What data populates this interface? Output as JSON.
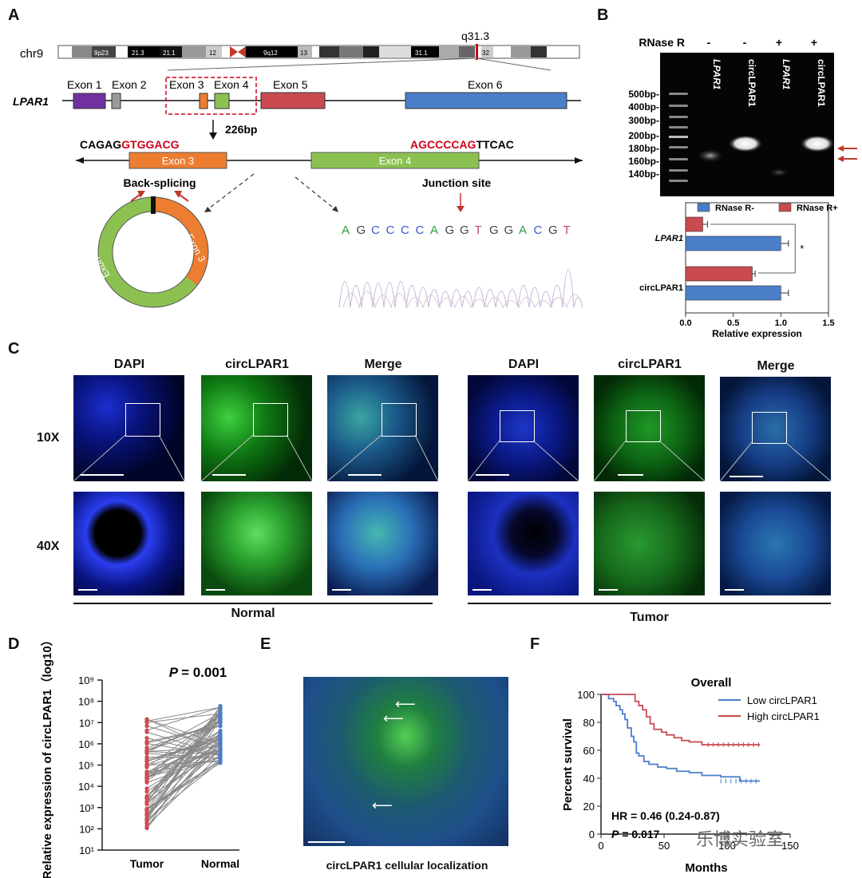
{
  "panels": {
    "a": "A",
    "b": "B",
    "c": "C",
    "d": "D",
    "e": "E",
    "f": "F"
  },
  "panel_a": {
    "chromosome": "chr9",
    "band_marker": "q31.3",
    "bands": [
      "9p23",
      "21.3",
      "21.1",
      "12",
      "9q12",
      "13",
      "31.1",
      "32"
    ],
    "gene": "LPAR1",
    "exons": [
      "Exon 1",
      "Exon 2",
      "Exon 3",
      "Exon 4",
      "Exon 5",
      "Exon 6"
    ],
    "size_label": "226bp",
    "seq_left_black": "CAGAG",
    "seq_left_red": "GTGGACG",
    "seq_right_red": "AGCCCCAG",
    "seq_right_black": "TTCAC",
    "back_splicing": "Back-splicing",
    "junction_site": "Junction site",
    "chromatogram_bases": [
      "A",
      "G",
      "C",
      "C",
      "C",
      "C",
      "A",
      "G",
      "G",
      "T",
      "G",
      "G",
      "A",
      "C",
      "G",
      "T"
    ],
    "ring_exon3": "Exon 3",
    "ring_exon4": "Exon 4"
  },
  "panel_b": {
    "rnase_label": "RNase R",
    "lanes": [
      {
        "sign": "-",
        "name": "LPAR1"
      },
      {
        "sign": "-",
        "name": "circLPAR1"
      },
      {
        "sign": "+",
        "name": "LPAR1"
      },
      {
        "sign": "+",
        "name": "circLPAR1"
      }
    ],
    "ladder": [
      "500bp-",
      "400bp-",
      "300bp-",
      "200bp-",
      "180bp-",
      "160bp-",
      "140bp-"
    ]
  },
  "chart_data": {
    "type": "bar",
    "orientation": "horizontal",
    "categories": [
      "LPAR1",
      "circLPAR1"
    ],
    "series": [
      {
        "name": "RNase R-",
        "values": [
          1.0,
          1.0
        ],
        "errors": [
          0.08,
          0.08
        ],
        "color": "#4a7ec9"
      },
      {
        "name": "RNase R+",
        "values": [
          0.18,
          0.7
        ],
        "errors": [
          0.05,
          0.03
        ],
        "color": "#c94a4f"
      }
    ],
    "xlabel": "Relative expression",
    "xlim": [
      0,
      1.5
    ],
    "xticks": [
      "0.0",
      "0.5",
      "1.0",
      "1.5"
    ],
    "annotation": "*",
    "legend": "top"
  },
  "panel_c": {
    "columns": [
      "DAPI",
      "circLPAR1",
      "Merge",
      "DAPI",
      "circLPAR1",
      "Merge"
    ],
    "rows": [
      "10X",
      "40X"
    ],
    "groups": [
      "Normal",
      "Tumor"
    ]
  },
  "panel_d": {
    "ylabel": "Relative expression of circLPAR1（log10）",
    "yticks": [
      "10⁹",
      "10⁸",
      "10⁷",
      "10⁶",
      "10⁵",
      "10⁴",
      "10³",
      "10²",
      "10¹"
    ],
    "xcats": [
      "Tumor",
      "Normal"
    ],
    "p_label": "P",
    "p_value": "= 0.001"
  },
  "panel_e": {
    "caption": "circLPAR1 cellular localization"
  },
  "panel_f": {
    "title": "Overall",
    "ylabel": "Percent survival",
    "xlabel": "Months",
    "yticks": [
      "100",
      "80",
      "60",
      "40",
      "20",
      "0"
    ],
    "xticks": [
      "0",
      "50",
      "100",
      "150"
    ],
    "legend": [
      {
        "name": "Low circLPAR1",
        "color": "#4a7ec9"
      },
      {
        "name": "High circLPAR1",
        "color": "#c94a4f"
      }
    ],
    "hr": "HR = 0.46 (0.24-0.87)",
    "p_label": "P",
    "p_value": "= 0.017"
  },
  "watermark": "乐博实验室"
}
